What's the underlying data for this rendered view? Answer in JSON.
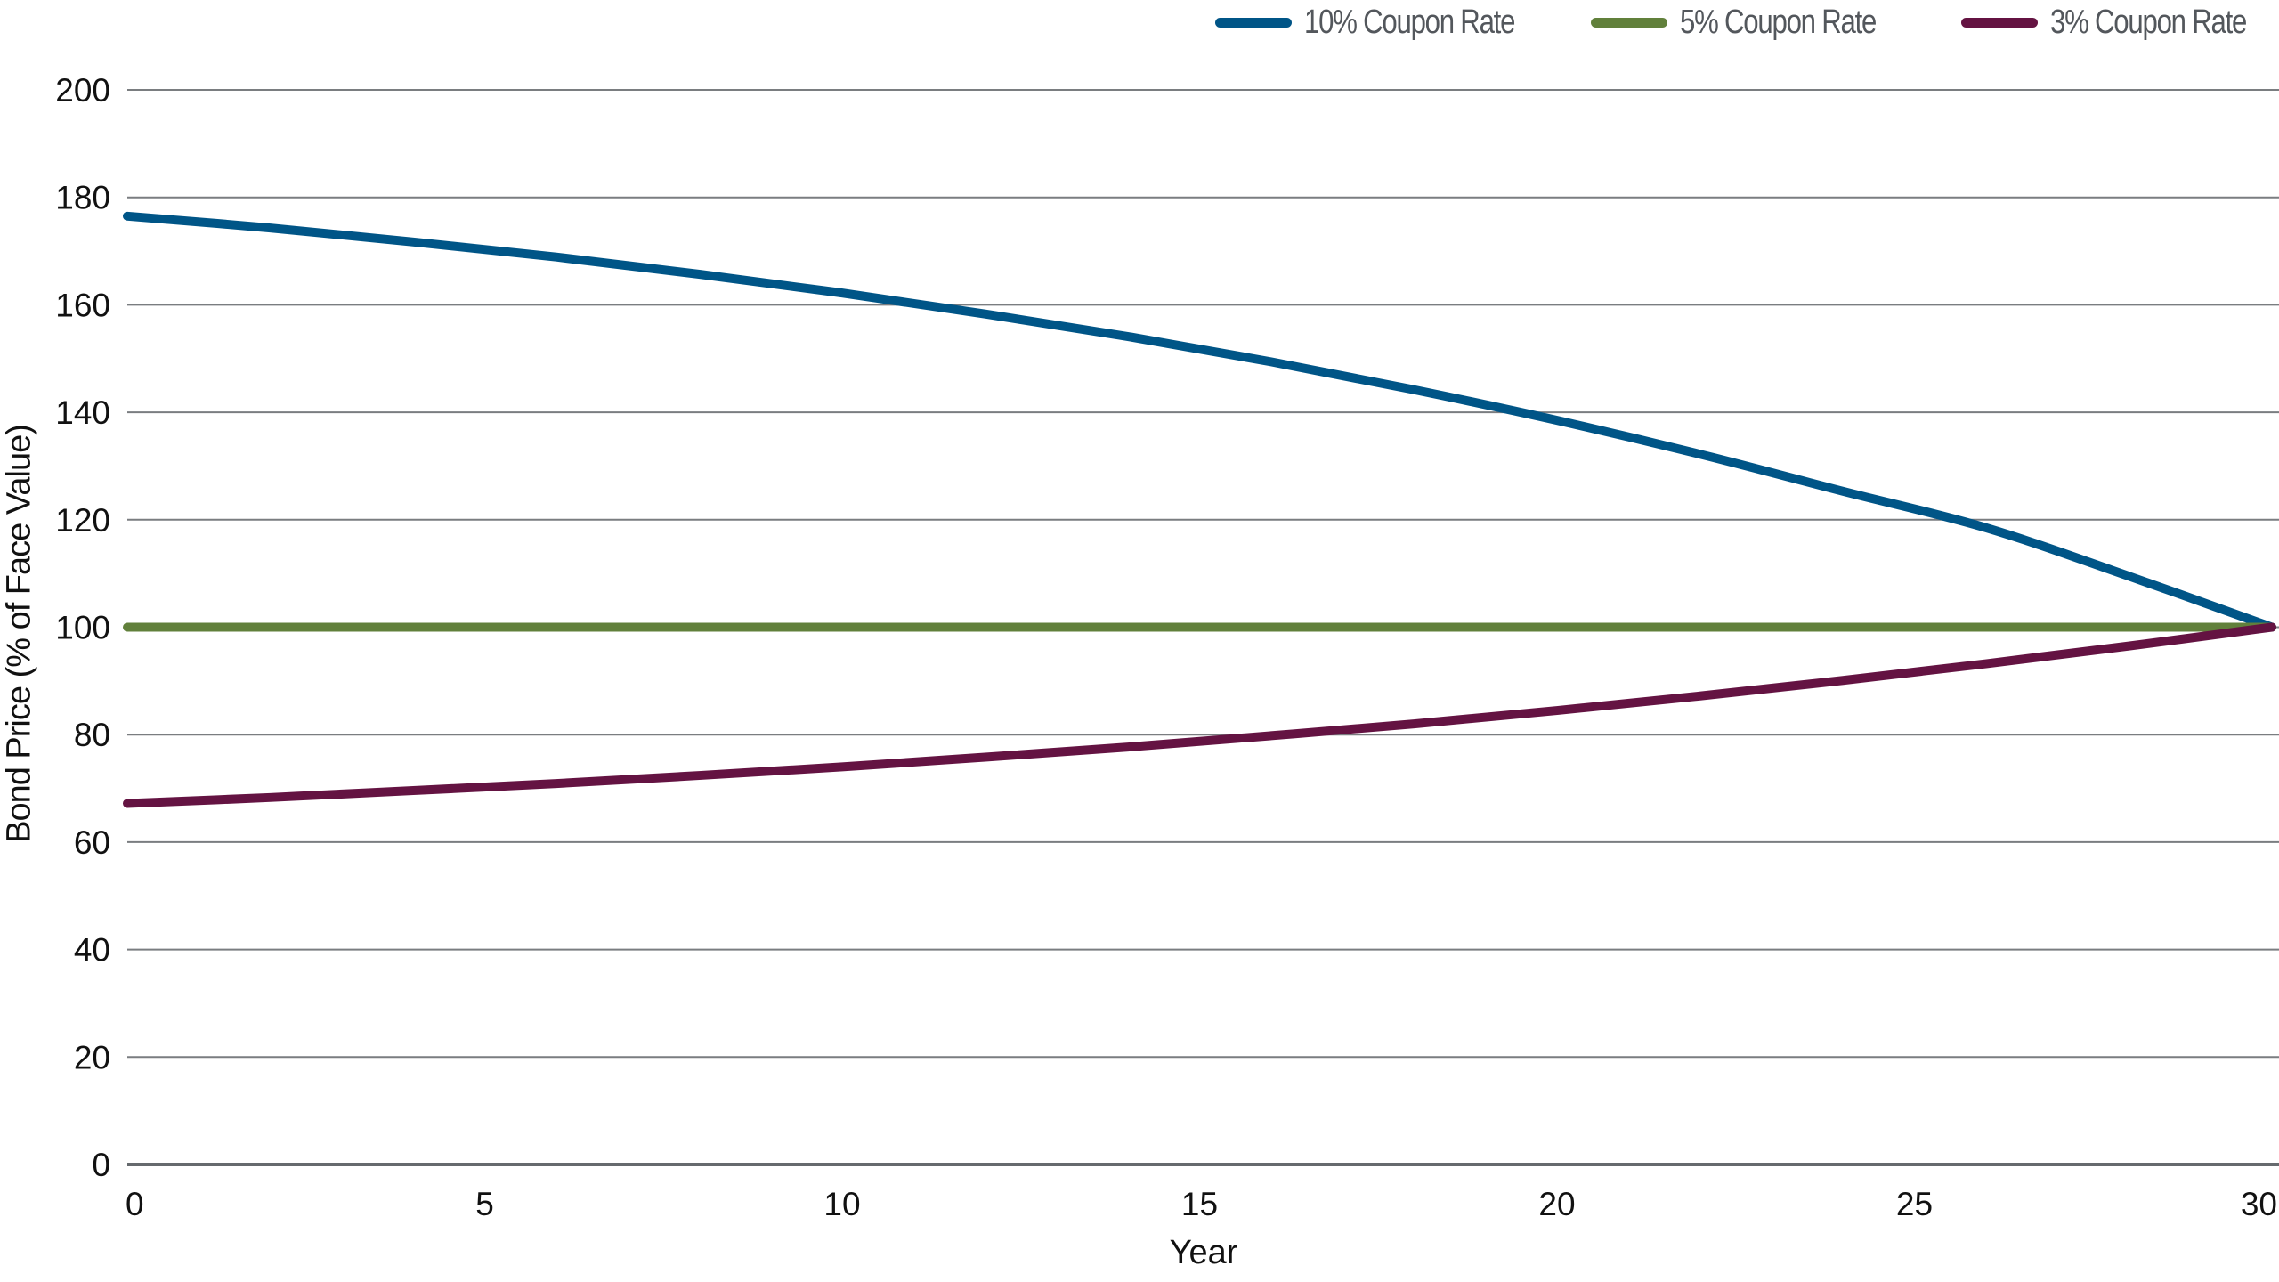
{
  "legend": {
    "items": [
      {
        "label": "10% Coupon Rate",
        "color": "#005587"
      },
      {
        "label": "5% Coupon Rate",
        "color": "#61803b"
      },
      {
        "label": "3% Coupon Rate",
        "color": "#641342"
      }
    ]
  },
  "axes": {
    "ylabel": "Bond Price (% of Face Value)",
    "xlabel": "Year"
  },
  "chart_data": {
    "type": "line",
    "title": "",
    "xlabel": "Year",
    "ylabel": "Bond Price (% of Face Value)",
    "xlim": [
      0,
      30
    ],
    "ylim": [
      0,
      200
    ],
    "xticks": [
      0,
      5,
      10,
      15,
      20,
      25,
      30
    ],
    "yticks": [
      0,
      20,
      40,
      60,
      80,
      100,
      120,
      140,
      160,
      180,
      200
    ],
    "grid": "horizontal",
    "legend_position": "top-right",
    "x": [
      0,
      2,
      4,
      6,
      8,
      10,
      12,
      14,
      16,
      18,
      20,
      22,
      24,
      26,
      28,
      30
    ],
    "series": [
      {
        "name": "10% Coupon Rate",
        "color": "#005587",
        "values": [
          176.5,
          174.3,
          171.7,
          168.9,
          165.7,
          162.2,
          158.3,
          154.1,
          149.4,
          144.2,
          138.5,
          132.2,
          125.3,
          118.5,
          109.5,
          100
        ]
      },
      {
        "name": "5% Coupon Rate",
        "color": "#61803b",
        "values": [
          100,
          100,
          100,
          100,
          100,
          100,
          100,
          100,
          100,
          100,
          100,
          100,
          100,
          100,
          100,
          100
        ]
      },
      {
        "name": "3% Coupon Rate",
        "color": "#641342",
        "values": [
          67.2,
          68.3,
          69.6,
          70.9,
          72.4,
          74.0,
          75.8,
          77.7,
          79.8,
          82.0,
          84.5,
          87.2,
          90.1,
          93.2,
          96.5,
          100
        ]
      }
    ]
  }
}
